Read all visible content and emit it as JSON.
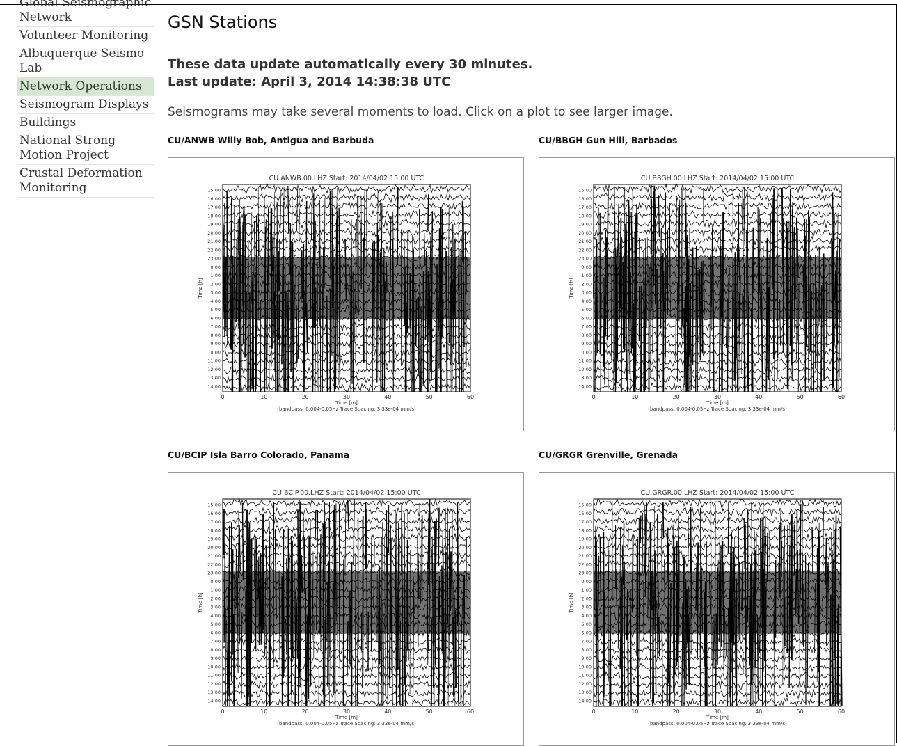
{
  "sidebar": {
    "items": [
      {
        "label": "Global Seismographic Network",
        "active": false
      },
      {
        "label": "Volunteer Monitoring",
        "active": false
      },
      {
        "label": "Albuquerque Seismo Lab",
        "active": false
      },
      {
        "label": "Network Operations",
        "active": true
      },
      {
        "label": "Seismogram Displays",
        "active": false
      },
      {
        "label": "Buildings",
        "active": false
      },
      {
        "label": "National Strong Motion Project",
        "active": false
      },
      {
        "label": "Crustal Deformation Monitoring",
        "active": false
      }
    ]
  },
  "main": {
    "title": "GSN Stations",
    "notice_line1": "These data update automatically every 30 minutes.",
    "notice_line2": "Last update: April 3, 2014 14:38:38 UTC",
    "load_note": "Seismograms may take several moments to load. Click on a plot to see larger image."
  },
  "stations": [
    {
      "heading": "CU/ANWB Willy Bob, Antigua and Barbuda",
      "plot_title": "CU.ANWB.00.LHZ  Start: 2014/04/02 15:00 UTC"
    },
    {
      "heading": "CU/BBGH Gun Hill, Barbados",
      "plot_title": "CU.BBGH.00.LHZ  Start: 2014/04/02 15:00 UTC"
    },
    {
      "heading": "CU/BCIP Isla Barro Colorado, Panama",
      "plot_title": "CU.BCIP.00.LHZ  Start: 2014/04/02 15:00 UTC"
    },
    {
      "heading": "CU/GRGR Grenville, Grenada",
      "plot_title": "CU.GRGR.00.LHZ  Start: 2014/04/02 15:00 UTC"
    }
  ],
  "plot_common": {
    "ylabel": "Time [h]",
    "xlabel": "Time [m]",
    "caption": "(bandpass: 0.004-0.05Hz  Trace Spacing: 3.33e-04 mm/s)",
    "yticks": [
      "15:00",
      "16:00",
      "17:00",
      "18:00",
      "19:00",
      "20:00",
      "21:00",
      "22:00",
      "23:00",
      "0:00",
      "1:00",
      "2:00",
      "3:00",
      "4:00",
      "5:00",
      "6:00",
      "7:00",
      "8:00",
      "9:00",
      "10:00",
      "11:00",
      "12:00",
      "13:00",
      "14:00"
    ],
    "xticks": [
      "0",
      "10",
      "20",
      "30",
      "40",
      "50",
      "60"
    ]
  }
}
